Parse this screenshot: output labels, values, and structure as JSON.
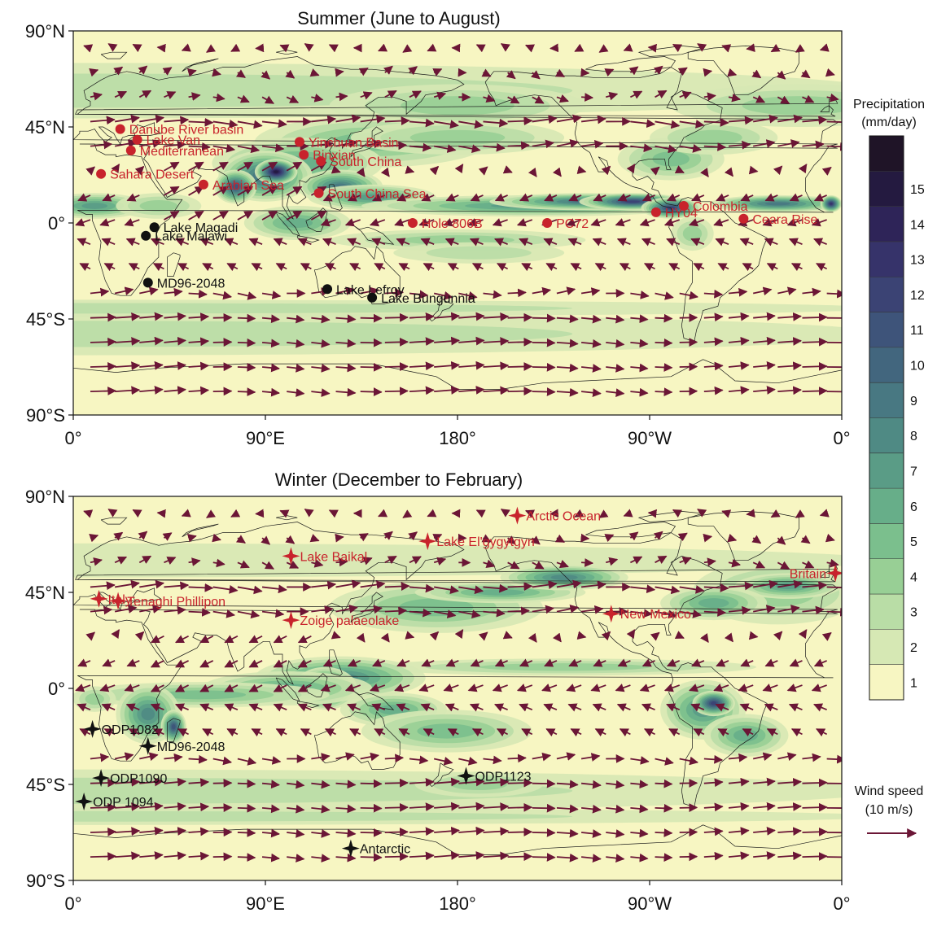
{
  "colors": {
    "red_site": "#c8232c",
    "black_site": "#111111",
    "wind_arrow": "#6b1636",
    "coast": "#1a1a1a",
    "precip_scale": [
      "#f7f6c2",
      "#d6e8b4",
      "#b9dda6",
      "#98cf95",
      "#7bbf8d",
      "#67ae89",
      "#5a9c86",
      "#4f8a84",
      "#487882",
      "#42667e",
      "#3e547a",
      "#3b4374",
      "#36336a",
      "#2e2458",
      "#241a40",
      "#1f1427"
    ]
  },
  "panels": [
    {
      "id": "summer",
      "title": "Summer (June to August)",
      "y_ticks": [
        "90°N",
        "45°N",
        "0°",
        "45°S",
        "90°S"
      ],
      "x_ticks": [
        "0°",
        "90°E",
        "180°",
        "90°W",
        "0°"
      ],
      "sites": [
        {
          "name": "Danube River basin",
          "lon": 22,
          "lat": 44,
          "marker": "dot",
          "color": "red"
        },
        {
          "name": "Lake Van",
          "lon": 30,
          "lat": 39,
          "marker": "dot",
          "color": "red"
        },
        {
          "name": "Mediterranean",
          "lon": 27,
          "lat": 34,
          "marker": "dot",
          "color": "red"
        },
        {
          "name": "Sahara Desert",
          "lon": 13,
          "lat": 23,
          "marker": "dot",
          "color": "red"
        },
        {
          "name": "Arabian Sea",
          "lon": 61,
          "lat": 18,
          "marker": "dot",
          "color": "red"
        },
        {
          "name": "Binxian",
          "lon": 108,
          "lat": 32,
          "marker": "dot",
          "color": "red"
        },
        {
          "name": "Yinchuan Basin",
          "lon": 106,
          "lat": 38,
          "marker": "dot",
          "color": "red"
        },
        {
          "name": "South China",
          "lon": 116,
          "lat": 29,
          "marker": "dot",
          "color": "red"
        },
        {
          "name": "South China Sea",
          "lon": 115,
          "lat": 14,
          "marker": "dot",
          "color": "red"
        },
        {
          "name": "Hole 806B",
          "lon": 159,
          "lat": 0,
          "marker": "dot",
          "color": "red"
        },
        {
          "name": "PC72",
          "lon": 222,
          "lat": 0,
          "marker": "dot",
          "color": "red"
        },
        {
          "name": "HY04",
          "lon": 273,
          "lat": 5,
          "marker": "dot",
          "color": "red"
        },
        {
          "name": "Colombia",
          "lon": 286,
          "lat": 8,
          "marker": "dot",
          "color": "red"
        },
        {
          "name": "Ceara Rise",
          "lon": 314,
          "lat": 2,
          "marker": "dot",
          "color": "red"
        },
        {
          "name": "Lake Magadi",
          "lon": 38,
          "lat": -2,
          "marker": "dot",
          "color": "black"
        },
        {
          "name": "Lake Malawi",
          "lon": 34,
          "lat": -6,
          "marker": "dot",
          "color": "black"
        },
        {
          "name": "MD96-2048",
          "lon": 35,
          "lat": -28,
          "marker": "dot",
          "color": "black"
        },
        {
          "name": "Lake Lefroy",
          "lon": 119,
          "lat": -31,
          "marker": "dot",
          "color": "black"
        },
        {
          "name": "Lake Bungunnia",
          "lon": 140,
          "lat": -35,
          "marker": "dot",
          "color": "black"
        }
      ]
    },
    {
      "id": "winter",
      "title": "Winter (December to February)",
      "y_ticks": [
        "90°N",
        "45°N",
        "0°",
        "45°S",
        "90°S"
      ],
      "x_ticks": [
        "0°",
        "90°E",
        "180°",
        "90°W",
        "0°"
      ],
      "sites": [
        {
          "name": "Arctic Ocean",
          "lon": 208,
          "lat": 81,
          "marker": "star",
          "color": "red"
        },
        {
          "name": "Lake El'gygytgyn",
          "lon": 166,
          "lat": 69,
          "marker": "star",
          "color": "red"
        },
        {
          "name": "Lake Baikal",
          "lon": 102,
          "lat": 62,
          "marker": "star",
          "color": "red"
        },
        {
          "name": "Britain",
          "lon": 357,
          "lat": 54,
          "marker": "star",
          "color": "red"
        },
        {
          "name": "Italy",
          "lon": 12,
          "lat": 42,
          "marker": "star",
          "color": "red"
        },
        {
          "name": "Tenaghi Phillipon",
          "lon": 21,
          "lat": 41,
          "marker": "star",
          "color": "red"
        },
        {
          "name": "New Mexico",
          "lon": 252,
          "lat": 35,
          "marker": "star",
          "color": "red"
        },
        {
          "name": "Zoige palaeolake",
          "lon": 102,
          "lat": 32,
          "marker": "star",
          "color": "red"
        },
        {
          "name": "ODP1082",
          "lon": 9,
          "lat": -19,
          "marker": "star",
          "color": "black"
        },
        {
          "name": "MD96-2048",
          "lon": 35,
          "lat": -27,
          "marker": "star",
          "color": "black"
        },
        {
          "name": "ODP1123",
          "lon": 184,
          "lat": -41,
          "marker": "star",
          "color": "black"
        },
        {
          "name": "ODP1090",
          "lon": 13,
          "lat": -42,
          "marker": "star",
          "color": "black"
        },
        {
          "name": "ODP 1094",
          "lon": 5,
          "lat": -53,
          "marker": "star",
          "color": "black"
        },
        {
          "name": "Antarctic",
          "lon": 130,
          "lat": -75,
          "marker": "star",
          "color": "black"
        }
      ]
    }
  ],
  "legend": {
    "precip_title_line1": "Precipitation",
    "precip_title_line2": "(mm/day)",
    "precip_levels": [
      "1",
      "2",
      "3",
      "4",
      "5",
      "6",
      "7",
      "8",
      "9",
      "10",
      "11",
      "12",
      "13",
      "14",
      "15"
    ],
    "wind_title_line1": "Wind speed",
    "wind_title_line2": "(10 m/s)"
  }
}
